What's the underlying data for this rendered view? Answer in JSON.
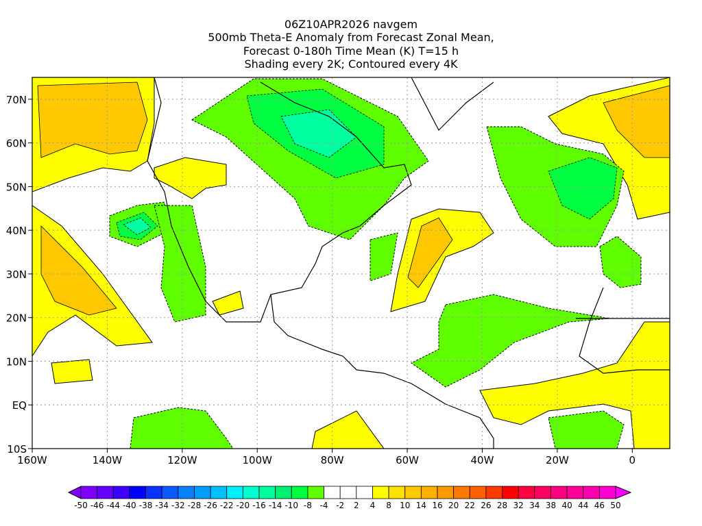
{
  "title": {
    "line1": "06Z10APR2026 navgem",
    "line2": "500mb Theta-E Anomaly from Forecast Zonal Mean,",
    "line3": "Forecast 0-180h Time Mean (K) T=15 h",
    "line4": "Shading every 2K; Contoured every 4K"
  },
  "axes": {
    "lon_labels": [
      "160W",
      "140W",
      "120W",
      "100W",
      "80W",
      "60W",
      "40W",
      "20W",
      "0"
    ],
    "lat_labels": [
      "70N",
      "60N",
      "50N",
      "40N",
      "30N",
      "20N",
      "10N",
      "EQ",
      "10S"
    ]
  },
  "colorbar": {
    "labels": [
      "-50",
      "-46",
      "-44",
      "-40",
      "-38",
      "-34",
      "-32",
      "-28",
      "-26",
      "-22",
      "-20",
      "-16",
      "-14",
      "-10",
      "-8",
      "-4",
      "-2",
      "2",
      "4",
      "8",
      "10",
      "14",
      "16",
      "20",
      "22",
      "26",
      "28",
      "32",
      "34",
      "38",
      "40",
      "44",
      "46",
      "50"
    ],
    "colors": [
      "#8000ff",
      "#6400ff",
      "#3c00ff",
      "#0000ff",
      "#0a32ff",
      "#0a5aff",
      "#0a80ff",
      "#009cff",
      "#00c0ff",
      "#00f0ff",
      "#00ffd0",
      "#00ffa0",
      "#00f070",
      "#00ff40",
      "#60ff00",
      "#ffffff",
      "#ffffff",
      "#ffffff",
      "#ffff00",
      "#ffe000",
      "#ffc800",
      "#ffb000",
      "#ff9a00",
      "#ff7800",
      "#ff6000",
      "#ff3800",
      "#ff0000",
      "#ff0040",
      "#ff0060",
      "#ff0080",
      "#ff0099",
      "#ff00b0",
      "#ff00d0"
    ],
    "low_arrow_color": "#8000ff",
    "high_arrow_color": "#ff00ff"
  }
}
